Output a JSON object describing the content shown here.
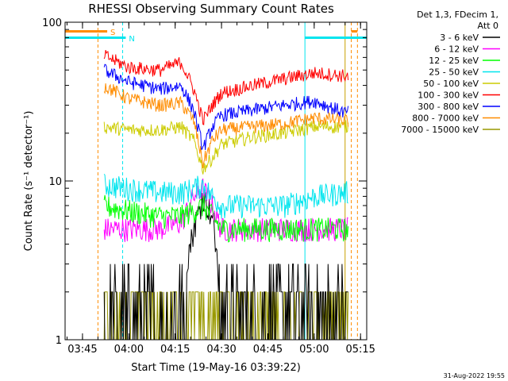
{
  "chart_data": {
    "type": "line",
    "title": "RHESSI Observing Summary Count Rates",
    "xlabel": "Start Time (19-May-16 03:39:22)",
    "ylabel": "Count Rate (s⁻¹ detector⁻¹)",
    "x_range": [
      "03:39:22",
      "05:17:00"
    ],
    "yscale": "log",
    "ylim": [
      1,
      100
    ],
    "x_ticks": [
      "03:45",
      "04:00",
      "04:15",
      "04:30",
      "04:45",
      "05:00",
      "05:15"
    ],
    "y_ticks": [
      "1",
      "10",
      "100"
    ],
    "legend_header": [
      "Det 1,3, FDecim 1,",
      "Att 0"
    ],
    "legend_position": "right",
    "timestamp": "31-Aug-2022 19:55",
    "flags": [
      {
        "label": "S",
        "color": "#ff8c00",
        "start": "03:39:22",
        "end": "03:53:00"
      },
      {
        "label": "N",
        "color": "#00e5ee",
        "start": "03:39:22",
        "end": "03:59:00"
      },
      {
        "label": "",
        "color": "#00e5ee",
        "start": "04:57:00",
        "end": "05:17:00"
      },
      {
        "label": "",
        "color": "#ff8c00",
        "start": "05:12:00",
        "end": "05:14:00"
      }
    ],
    "vlines": [
      {
        "time": "03:50:00",
        "color": "#ff8c00",
        "style": "dashed"
      },
      {
        "time": "03:58:00",
        "color": "#00e5ee",
        "style": "dashed"
      },
      {
        "time": "04:57:00",
        "color": "#00e5ee",
        "style": "solid"
      },
      {
        "time": "05:10:00",
        "color": "#c8a000",
        "style": "solid"
      },
      {
        "time": "05:12:00",
        "color": "#ff8c00",
        "style": "dashed"
      },
      {
        "time": "05:14:00",
        "color": "#ff8c00",
        "style": "dashed"
      }
    ],
    "data_start": "03:52:00",
    "data_end": "05:11:00",
    "series": [
      {
        "name": "3 - 6 keV",
        "color": "#000000",
        "x": [
          "03:52",
          "04:00",
          "04:10",
          "04:17",
          "04:21",
          "04:24",
          "04:27",
          "04:30",
          "04:40",
          "04:50",
          "05:00",
          "05:10"
        ],
        "y": [
          1.5,
          1.5,
          1.5,
          2.2,
          5,
          8,
          6,
          2,
          1.5,
          1.5,
          1.5,
          1.5
        ]
      },
      {
        "name": "6 - 12 keV",
        "color": "#ff00ff",
        "x": [
          "03:52",
          "04:00",
          "04:10",
          "04:17",
          "04:21",
          "04:24",
          "04:27",
          "04:30",
          "04:40",
          "04:50",
          "05:00",
          "05:10"
        ],
        "y": [
          5,
          5,
          5,
          5.5,
          8,
          9,
          7,
          5,
          5,
          5,
          5,
          5
        ]
      },
      {
        "name": "12 - 25 keV",
        "color": "#00ff00",
        "x": [
          "03:52",
          "04:00",
          "04:10",
          "04:17",
          "04:21",
          "04:24",
          "04:27",
          "04:30",
          "04:40",
          "04:50",
          "05:00",
          "05:10"
        ],
        "y": [
          7,
          6.5,
          6,
          6,
          6.5,
          7,
          6,
          5,
          5,
          5,
          5,
          5
        ]
      },
      {
        "name": "25 - 50 keV",
        "color": "#00e5ee",
        "x": [
          "03:52",
          "04:00",
          "04:10",
          "04:17",
          "04:21",
          "04:24",
          "04:27",
          "04:30",
          "04:40",
          "04:50",
          "05:00",
          "05:10"
        ],
        "y": [
          9.5,
          9,
          8.5,
          8.5,
          9,
          9.5,
          8,
          7,
          7,
          7,
          8,
          8.5
        ]
      },
      {
        "name": "50 - 100 keV",
        "color": "#cccc00",
        "x": [
          "03:52",
          "04:00",
          "04:10",
          "04:17",
          "04:21",
          "04:24",
          "04:27",
          "04:30",
          "04:40",
          "04:50",
          "05:00",
          "05:10"
        ],
        "y": [
          22,
          21,
          21,
          22,
          18,
          12,
          14,
          17,
          19,
          20,
          22,
          22
        ]
      },
      {
        "name": "100 - 300 keV",
        "color": "#ff0000",
        "x": [
          "03:52",
          "04:00",
          "04:10",
          "04:17",
          "04:21",
          "04:24",
          "04:27",
          "04:30",
          "04:40",
          "04:50",
          "05:00",
          "05:10"
        ],
        "y": [
          62,
          52,
          50,
          56,
          38,
          24,
          30,
          36,
          40,
          44,
          48,
          46
        ]
      },
      {
        "name": "300 - 800 keV",
        "color": "#0000ff",
        "x": [
          "03:52",
          "04:00",
          "04:10",
          "04:17",
          "04:21",
          "04:24",
          "04:27",
          "04:30",
          "04:40",
          "04:50",
          "05:00",
          "05:10"
        ],
        "y": [
          50,
          42,
          38,
          40,
          28,
          16,
          22,
          26,
          28,
          30,
          32,
          27
        ]
      },
      {
        "name": "800 - 7000 keV",
        "color": "#ff8c00",
        "x": [
          "03:52",
          "04:00",
          "04:10",
          "04:17",
          "04:21",
          "04:24",
          "04:27",
          "04:30",
          "04:40",
          "04:50",
          "05:00",
          "05:10"
        ],
        "y": [
          40,
          33,
          30,
          31,
          24,
          13,
          18,
          21,
          22,
          23,
          25,
          24
        ]
      },
      {
        "name": "7000 - 15000 keV",
        "color": "#999900",
        "x": [
          "03:52",
          "04:00",
          "04:10",
          "04:17",
          "04:21",
          "04:24",
          "04:27",
          "04:30",
          "04:40",
          "04:50",
          "05:00",
          "05:10"
        ],
        "y": [
          1.5,
          1.5,
          1.5,
          1.5,
          1.5,
          1.5,
          1.5,
          1.5,
          1.5,
          1.5,
          1.5,
          1.5
        ]
      }
    ]
  }
}
